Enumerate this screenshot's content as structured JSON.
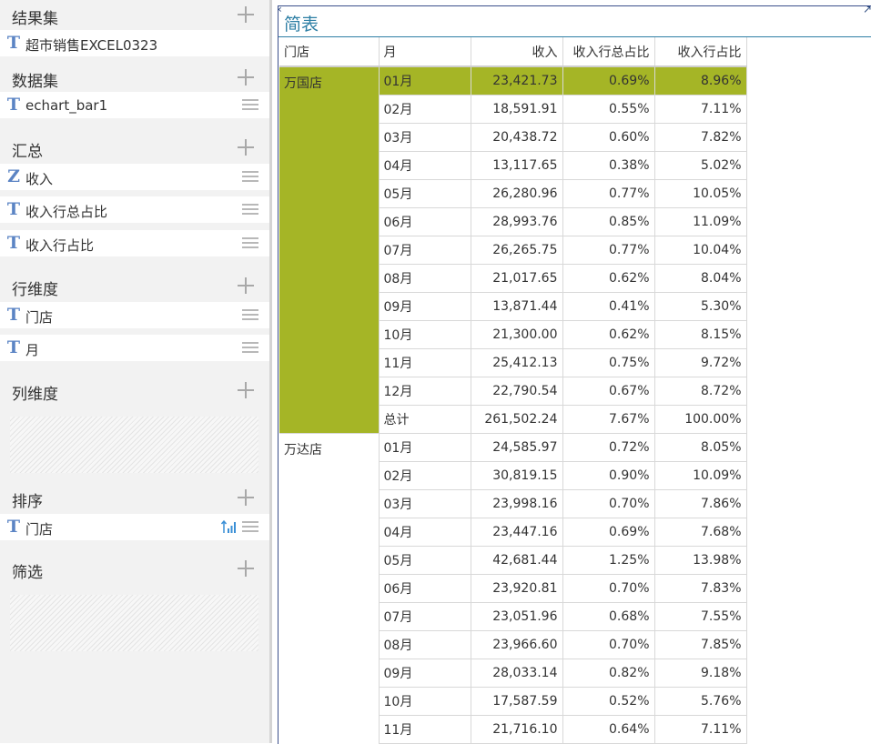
{
  "panel": {
    "result_set": {
      "title": "结果集",
      "items": [
        {
          "icon": "T",
          "name": "超市销售EXCEL0323"
        }
      ]
    },
    "dataset": {
      "title": "数据集",
      "items": [
        {
          "icon": "T",
          "name": "echart_bar1"
        }
      ]
    },
    "summary": {
      "title": "汇总",
      "items": [
        {
          "icon": "Z",
          "name": "收入"
        },
        {
          "icon": "T",
          "name": "收入行总占比"
        },
        {
          "icon": "T",
          "name": "收入行占比"
        }
      ]
    },
    "row_dimension": {
      "title": "行维度",
      "items": [
        {
          "icon": "T",
          "name": "门店"
        },
        {
          "icon": "T",
          "name": "月"
        }
      ]
    },
    "col_dimension": {
      "title": "列维度",
      "items": []
    },
    "sort": {
      "title": "排序",
      "items": [
        {
          "icon": "T",
          "name": "门店"
        }
      ]
    },
    "filter": {
      "title": "筛选",
      "items": []
    }
  },
  "report": {
    "title": "简表",
    "collapse_glyph": "‹",
    "expand_glyph": "↗",
    "columns": [
      "门店",
      "月",
      "收入",
      "收入行总占比",
      "收入行占比"
    ],
    "highlight_color": "#a5b526",
    "groups": [
      {
        "store": "万国店",
        "rows": [
          [
            "01月",
            "23,421.73",
            "0.69%",
            "8.96%"
          ],
          [
            "02月",
            "18,591.91",
            "0.55%",
            "7.11%"
          ],
          [
            "03月",
            "20,438.72",
            "0.60%",
            "7.82%"
          ],
          [
            "04月",
            "13,117.65",
            "0.38%",
            "5.02%"
          ],
          [
            "05月",
            "26,280.96",
            "0.77%",
            "10.05%"
          ],
          [
            "06月",
            "28,993.76",
            "0.85%",
            "11.09%"
          ],
          [
            "07月",
            "26,265.75",
            "0.77%",
            "10.04%"
          ],
          [
            "08月",
            "21,017.65",
            "0.62%",
            "8.04%"
          ],
          [
            "09月",
            "13,871.44",
            "0.41%",
            "5.30%"
          ],
          [
            "10月",
            "21,300.00",
            "0.62%",
            "8.15%"
          ],
          [
            "11月",
            "25,412.13",
            "0.75%",
            "9.72%"
          ],
          [
            "12月",
            "22,790.54",
            "0.67%",
            "8.72%"
          ],
          [
            "总计",
            "261,502.24",
            "7.67%",
            "100.00%"
          ]
        ]
      },
      {
        "store": "万达店",
        "rows": [
          [
            "01月",
            "24,585.97",
            "0.72%",
            "8.05%"
          ],
          [
            "02月",
            "30,819.15",
            "0.90%",
            "10.09%"
          ],
          [
            "03月",
            "23,998.16",
            "0.70%",
            "7.86%"
          ],
          [
            "04月",
            "23,447.16",
            "0.69%",
            "7.68%"
          ],
          [
            "05月",
            "42,681.44",
            "1.25%",
            "13.98%"
          ],
          [
            "06月",
            "23,920.81",
            "0.70%",
            "7.83%"
          ],
          [
            "07月",
            "23,051.96",
            "0.68%",
            "7.55%"
          ],
          [
            "08月",
            "23,966.60",
            "0.70%",
            "7.85%"
          ],
          [
            "09月",
            "28,033.14",
            "0.82%",
            "9.18%"
          ],
          [
            "10月",
            "17,587.59",
            "0.52%",
            "5.76%"
          ],
          [
            "11月",
            "21,716.10",
            "0.64%",
            "7.11%"
          ]
        ]
      }
    ]
  }
}
